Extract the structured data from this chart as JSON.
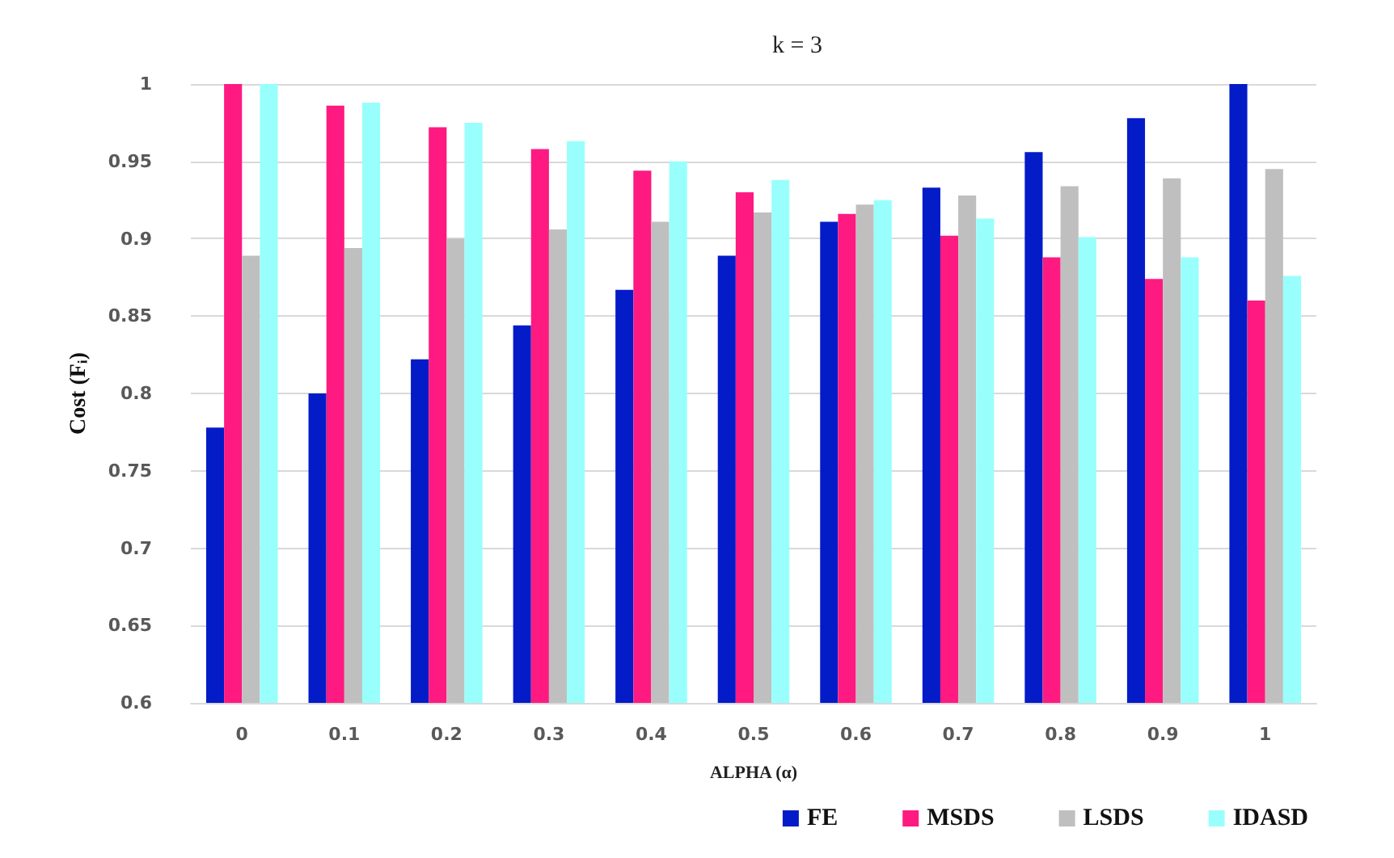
{
  "chart_data": {
    "type": "bar",
    "title": "k = 3",
    "xlabel": "ALPHA (α)",
    "ylabel": "Cost (Fᵢ)",
    "categories": [
      "0",
      "0.1",
      "0.2",
      "0.3",
      "0.4",
      "0.5",
      "0.6",
      "0.7",
      "0.8",
      "0.9",
      "1"
    ],
    "series": [
      {
        "name": "FE",
        "color": "#041bc8",
        "values": [
          0.778,
          0.8,
          0.822,
          0.844,
          0.867,
          0.889,
          0.911,
          0.933,
          0.956,
          0.978,
          1.0
        ]
      },
      {
        "name": "MSDS",
        "color": "#fe1a80",
        "values": [
          1.0,
          0.986,
          0.972,
          0.958,
          0.944,
          0.93,
          0.916,
          0.902,
          0.888,
          0.874,
          0.86
        ]
      },
      {
        "name": "LSDS",
        "color": "#bfbfbf",
        "values": [
          0.889,
          0.894,
          0.9,
          0.906,
          0.911,
          0.917,
          0.922,
          0.928,
          0.934,
          0.939,
          0.945
        ]
      },
      {
        "name": "IDASD",
        "color": "#99fffc",
        "values": [
          1.0,
          0.988,
          0.975,
          0.963,
          0.95,
          0.938,
          0.925,
          0.913,
          0.901,
          0.888,
          0.876
        ]
      }
    ],
    "ylim": [
      0.6,
      1
    ],
    "yticks": [
      0.6,
      0.65,
      0.7,
      0.75,
      0.8,
      0.85,
      0.9,
      0.95,
      1
    ],
    "grid": "y",
    "legend": "bottom right"
  }
}
